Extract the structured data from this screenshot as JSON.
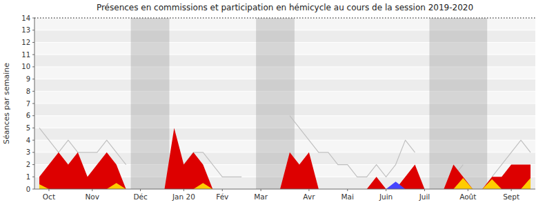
{
  "chart_data": {
    "type": "area",
    "title": "Présences en commissions et participation en hémicycle au cours de la session 2019-2020",
    "ylabel": "Séances par semaine",
    "x": [
      0,
      1,
      2,
      3,
      4,
      5,
      6,
      7,
      8,
      9,
      10,
      11,
      12,
      13,
      14,
      15,
      16,
      17,
      18,
      19,
      20,
      21,
      22,
      23,
      24,
      25,
      26,
      27,
      28,
      29,
      30,
      31,
      32,
      33,
      34,
      35,
      36,
      37,
      38,
      39,
      40,
      41,
      42,
      43,
      44,
      45,
      46,
      47,
      48,
      49,
      50,
      51
    ],
    "xlim": [
      -0.5,
      51.5
    ],
    "xticks": [
      {
        "value": 1,
        "label": "Oct"
      },
      {
        "value": 5.5,
        "label": "Nov"
      },
      {
        "value": 10.5,
        "label": "Déc"
      },
      {
        "value": 15,
        "label": "Jan 20"
      },
      {
        "value": 19,
        "label": "Fév"
      },
      {
        "value": 23,
        "label": "Mar"
      },
      {
        "value": 28,
        "label": "Avr"
      },
      {
        "value": 32,
        "label": "Mai"
      },
      {
        "value": 36,
        "label": "Juin"
      },
      {
        "value": 40,
        "label": "Juil"
      },
      {
        "value": 44.5,
        "label": "Août"
      },
      {
        "value": 49,
        "label": "Sept"
      }
    ],
    "ylim": [
      0,
      14
    ],
    "yticks": [
      0,
      1,
      2,
      3,
      4,
      5,
      6,
      7,
      8,
      9,
      10,
      11,
      12,
      13,
      14
    ],
    "grid": true,
    "vacation_spans": [
      [
        9.5,
        13.5
      ],
      [
        22.5,
        26.5
      ],
      [
        40.5,
        46.5
      ]
    ],
    "series": [
      {
        "type": "line",
        "color": "#c0c0c0",
        "values": [
          5,
          4,
          3,
          4,
          3,
          3,
          3,
          4,
          3,
          2,
          null,
          null,
          null,
          null,
          2,
          2,
          3,
          3,
          2,
          1,
          1,
          1,
          null,
          null,
          null,
          null,
          6,
          5,
          4,
          3,
          3,
          2,
          2,
          1,
          1,
          2,
          1,
          2,
          4,
          3,
          null,
          null,
          null,
          1,
          2,
          null,
          null,
          1,
          2,
          3,
          4,
          3
        ]
      },
      {
        "type": "area",
        "color": "#dd0000",
        "values": [
          1,
          2,
          3,
          2,
          3,
          1,
          2,
          3,
          2,
          0,
          0,
          0,
          0,
          0,
          5,
          2,
          3,
          2,
          0,
          0,
          0,
          0,
          0,
          0,
          0,
          0,
          3,
          2,
          3,
          0,
          0,
          0,
          0,
          0,
          0,
          1,
          0,
          0,
          1,
          2,
          0,
          0,
          0,
          2,
          1,
          0,
          0,
          1,
          1,
          2,
          2,
          2
        ]
      },
      {
        "type": "area",
        "color": "#ffcc00",
        "values": [
          0.4,
          0,
          0,
          0,
          0,
          0,
          0,
          0,
          0.5,
          0,
          0,
          0,
          0,
          0,
          0,
          0,
          0,
          0.5,
          0,
          0,
          0,
          0,
          0,
          0,
          0,
          0,
          0,
          0,
          0,
          0,
          0,
          0,
          0,
          0,
          0,
          0,
          0,
          0,
          0,
          0,
          0,
          0,
          0,
          0,
          0.9,
          0,
          0,
          0.8,
          0,
          0,
          0,
          0.9
        ]
      },
      {
        "type": "area",
        "color": "#4444ff",
        "values": [
          0,
          0,
          0,
          0,
          0,
          0,
          0,
          0,
          0,
          0,
          0,
          0,
          0,
          0,
          0,
          0,
          0,
          0,
          0,
          0,
          0,
          0,
          0,
          0,
          0,
          0,
          0,
          0,
          0,
          0,
          0,
          0,
          0,
          0,
          0,
          0,
          0,
          0.6,
          0,
          0,
          0,
          0,
          0,
          0,
          0,
          0,
          0,
          0,
          0,
          0,
          0,
          0
        ]
      }
    ]
  }
}
